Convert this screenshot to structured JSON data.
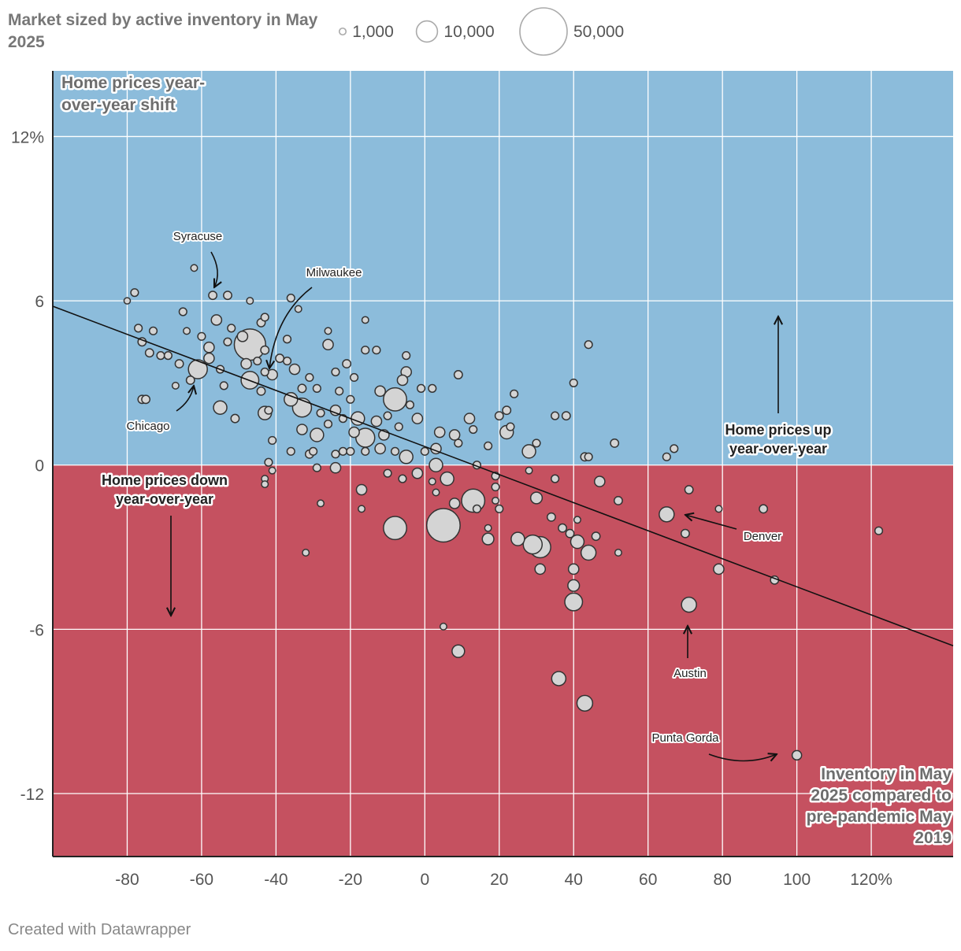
{
  "legend": {
    "title": "Market sized by active inventory in May 2025",
    "sizes": [
      {
        "value": 1000,
        "label": "1,000"
      },
      {
        "value": 10000,
        "label": "10,000"
      },
      {
        "value": 50000,
        "label": "50,000"
      }
    ]
  },
  "credit": "Created with Datawrapper",
  "chart_data": {
    "type": "scatter",
    "xlabel": "Inventory in May 2025 compared to pre-pandemic May 2019",
    "ylabel": "Home prices year-over-year shift",
    "xlim": [
      -100,
      142
    ],
    "ylim": [
      -14.3,
      14.4
    ],
    "x_ticks": [
      -80,
      -60,
      -40,
      -20,
      0,
      20,
      40,
      60,
      80,
      100,
      120
    ],
    "x_tick_labels": [
      "-80",
      "-60",
      "-40",
      "-20",
      "0",
      "20",
      "40",
      "60",
      "80",
      "100",
      "120%"
    ],
    "y_ticks": [
      12,
      6,
      0,
      -6,
      -12
    ],
    "y_tick_labels": [
      "12%",
      "6",
      "0",
      "-6",
      "-12"
    ],
    "grid": true,
    "colors": {
      "above_zero": "#8cbcdb",
      "below_zero": "#c55160",
      "point_fill": "#d4d4d4",
      "point_stroke": "#333333",
      "grid": "#ffffff"
    },
    "trendline": {
      "x": [
        -100,
        142
      ],
      "y": [
        5.8,
        -6.6
      ]
    },
    "zone_labels": {
      "up": "Home prices up year-over-year",
      "down": "Home prices down year-over-year"
    },
    "annotations": [
      {
        "text": "Syracuse",
        "x": -57,
        "y": 6.2
      },
      {
        "text": "Milwaukee",
        "x": -41,
        "y": 3.5
      },
      {
        "text": "Chicago",
        "x": -63,
        "y": 3.4
      },
      {
        "text": "Denver",
        "x": 65,
        "y": -1.8
      },
      {
        "text": "Austin",
        "x": 71,
        "y": -5.1
      },
      {
        "text": "Punta Gorda",
        "x": 100,
        "y": -10.6
      }
    ],
    "points": [
      {
        "x": -80,
        "y": 6.0,
        "size": 900
      },
      {
        "x": -78,
        "y": 6.3,
        "size": 1300
      },
      {
        "x": -62,
        "y": 7.2,
        "size": 1000
      },
      {
        "x": -57,
        "y": 6.2,
        "size": 1500
      },
      {
        "x": -53,
        "y": 6.2,
        "size": 1500
      },
      {
        "x": -47,
        "y": 6.0,
        "size": 1000
      },
      {
        "x": -36,
        "y": 6.1,
        "size": 1300
      },
      {
        "x": -34,
        "y": 5.7,
        "size": 1000
      },
      {
        "x": -65,
        "y": 5.6,
        "size": 1300
      },
      {
        "x": -56,
        "y": 5.3,
        "size": 2400
      },
      {
        "x": -47,
        "y": 4.4,
        "size": 22000
      },
      {
        "x": -44,
        "y": 5.2,
        "size": 1500
      },
      {
        "x": -43,
        "y": 5.4,
        "size": 1300
      },
      {
        "x": -77,
        "y": 5.0,
        "size": 1300
      },
      {
        "x": -73,
        "y": 4.9,
        "size": 1300
      },
      {
        "x": -64,
        "y": 4.9,
        "size": 1000
      },
      {
        "x": -60,
        "y": 4.7,
        "size": 1300
      },
      {
        "x": -52,
        "y": 5.0,
        "size": 1300
      },
      {
        "x": -49,
        "y": 4.7,
        "size": 2400
      },
      {
        "x": -76,
        "y": 4.5,
        "size": 1500
      },
      {
        "x": -74,
        "y": 4.1,
        "size": 1500
      },
      {
        "x": -71,
        "y": 4.0,
        "size": 1300
      },
      {
        "x": -69,
        "y": 4.0,
        "size": 1300
      },
      {
        "x": -58,
        "y": 4.3,
        "size": 2400
      },
      {
        "x": -53,
        "y": 4.5,
        "size": 1300
      },
      {
        "x": -43,
        "y": 4.2,
        "size": 1500
      },
      {
        "x": -37,
        "y": 4.6,
        "size": 1300
      },
      {
        "x": -26,
        "y": 4.9,
        "size": 1000
      },
      {
        "x": -26,
        "y": 4.4,
        "size": 2400
      },
      {
        "x": -16,
        "y": 5.3,
        "size": 1000
      },
      {
        "x": -16,
        "y": 4.2,
        "size": 1300
      },
      {
        "x": -13,
        "y": 4.2,
        "size": 1300
      },
      {
        "x": -5,
        "y": 4.0,
        "size": 1300
      },
      {
        "x": 44,
        "y": 4.4,
        "size": 1300
      },
      {
        "x": -66,
        "y": 3.7,
        "size": 1500
      },
      {
        "x": -61,
        "y": 3.5,
        "size": 8000
      },
      {
        "x": -58,
        "y": 3.9,
        "size": 2400
      },
      {
        "x": -55,
        "y": 3.5,
        "size": 1300
      },
      {
        "x": -48,
        "y": 3.7,
        "size": 2400
      },
      {
        "x": -45,
        "y": 3.8,
        "size": 1300
      },
      {
        "x": -43,
        "y": 3.4,
        "size": 1300
      },
      {
        "x": -41,
        "y": 3.3,
        "size": 2400
      },
      {
        "x": -39,
        "y": 3.9,
        "size": 1500
      },
      {
        "x": -37,
        "y": 3.8,
        "size": 1300
      },
      {
        "x": -35,
        "y": 3.5,
        "size": 2400
      },
      {
        "x": -31,
        "y": 3.2,
        "size": 1300
      },
      {
        "x": -21,
        "y": 3.7,
        "size": 1500
      },
      {
        "x": -24,
        "y": 3.4,
        "size": 1300
      },
      {
        "x": -19,
        "y": 3.2,
        "size": 1300
      },
      {
        "x": -5,
        "y": 3.4,
        "size": 2400
      },
      {
        "x": 9,
        "y": 3.3,
        "size": 1500
      },
      {
        "x": -67,
        "y": 2.9,
        "size": 1000
      },
      {
        "x": -76,
        "y": 2.4,
        "size": 1500
      },
      {
        "x": -75,
        "y": 2.4,
        "size": 1500
      },
      {
        "x": -63,
        "y": 3.1,
        "size": 1500
      },
      {
        "x": -54,
        "y": 2.9,
        "size": 1300
      },
      {
        "x": -47,
        "y": 3.1,
        "size": 7000
      },
      {
        "x": -44,
        "y": 2.7,
        "size": 1500
      },
      {
        "x": -36,
        "y": 2.4,
        "size": 4000
      },
      {
        "x": -33,
        "y": 2.8,
        "size": 1500
      },
      {
        "x": -29,
        "y": 2.8,
        "size": 1300
      },
      {
        "x": -23,
        "y": 2.7,
        "size": 1300
      },
      {
        "x": -20,
        "y": 2.4,
        "size": 1300
      },
      {
        "x": -12,
        "y": 2.7,
        "size": 2400
      },
      {
        "x": -8,
        "y": 2.4,
        "size": 12000
      },
      {
        "x": -6,
        "y": 3.1,
        "size": 2400
      },
      {
        "x": -4,
        "y": 2.2,
        "size": 1300
      },
      {
        "x": -1,
        "y": 2.8,
        "size": 1300
      },
      {
        "x": 2,
        "y": 2.8,
        "size": 1300
      },
      {
        "x": 24,
        "y": 2.6,
        "size": 1300
      },
      {
        "x": 40,
        "y": 3.0,
        "size": 1300
      },
      {
        "x": -55,
        "y": 2.1,
        "size": 4000
      },
      {
        "x": -51,
        "y": 1.7,
        "size": 1500
      },
      {
        "x": -43,
        "y": 1.9,
        "size": 4000
      },
      {
        "x": -42,
        "y": 2.0,
        "size": 1300
      },
      {
        "x": -33,
        "y": 2.1,
        "size": 8000
      },
      {
        "x": -28,
        "y": 1.9,
        "size": 1300
      },
      {
        "x": -24,
        "y": 2.0,
        "size": 2400
      },
      {
        "x": -22,
        "y": 1.7,
        "size": 1300
      },
      {
        "x": -18,
        "y": 1.7,
        "size": 4000
      },
      {
        "x": -13,
        "y": 1.6,
        "size": 2400
      },
      {
        "x": -10,
        "y": 1.8,
        "size": 1300
      },
      {
        "x": -2,
        "y": 1.7,
        "size": 2400
      },
      {
        "x": 12,
        "y": 1.7,
        "size": 2400
      },
      {
        "x": 20,
        "y": 1.8,
        "size": 1500
      },
      {
        "x": 22,
        "y": 2.0,
        "size": 1500
      },
      {
        "x": 35,
        "y": 1.8,
        "size": 1300
      },
      {
        "x": 38,
        "y": 1.8,
        "size": 1500
      },
      {
        "x": -33,
        "y": 1.3,
        "size": 2400
      },
      {
        "x": -29,
        "y": 1.1,
        "size": 4000
      },
      {
        "x": -26,
        "y": 1.5,
        "size": 1300
      },
      {
        "x": -19,
        "y": 1.2,
        "size": 2400
      },
      {
        "x": -16,
        "y": 1.0,
        "size": 8000
      },
      {
        "x": -11,
        "y": 1.1,
        "size": 2400
      },
      {
        "x": -7,
        "y": 1.4,
        "size": 1300
      },
      {
        "x": 4,
        "y": 1.2,
        "size": 2400
      },
      {
        "x": 8,
        "y": 1.1,
        "size": 2400
      },
      {
        "x": 13,
        "y": 1.3,
        "size": 1300
      },
      {
        "x": 22,
        "y": 1.2,
        "size": 4000
      },
      {
        "x": 23,
        "y": 1.4,
        "size": 1300
      },
      {
        "x": -41,
        "y": 0.9,
        "size": 1300
      },
      {
        "x": -36,
        "y": 0.5,
        "size": 1300
      },
      {
        "x": -30,
        "y": 0.5,
        "size": 1300
      },
      {
        "x": -24,
        "y": 0.4,
        "size": 1300
      },
      {
        "x": -22,
        "y": 0.5,
        "size": 1300
      },
      {
        "x": -20,
        "y": 0.5,
        "size": 1300
      },
      {
        "x": -16,
        "y": 0.5,
        "size": 1300
      },
      {
        "x": -12,
        "y": 0.6,
        "size": 2400
      },
      {
        "x": -8,
        "y": 0.5,
        "size": 1300
      },
      {
        "x": -5,
        "y": 0.3,
        "size": 4000
      },
      {
        "x": 0,
        "y": 0.5,
        "size": 1300
      },
      {
        "x": 3,
        "y": 0.6,
        "size": 2400
      },
      {
        "x": 9,
        "y": 0.8,
        "size": 1300
      },
      {
        "x": 17,
        "y": 0.7,
        "size": 1300
      },
      {
        "x": 28,
        "y": 0.5,
        "size": 4000
      },
      {
        "x": 30,
        "y": 0.8,
        "size": 1300
      },
      {
        "x": 43,
        "y": 0.3,
        "size": 1500
      },
      {
        "x": 44,
        "y": 0.3,
        "size": 1300
      },
      {
        "x": 51,
        "y": 0.8,
        "size": 1500
      },
      {
        "x": 65,
        "y": 0.3,
        "size": 1300
      },
      {
        "x": 67,
        "y": 0.6,
        "size": 1300
      },
      {
        "x": -42,
        "y": 0.1,
        "size": 1300
      },
      {
        "x": -41,
        "y": -0.2,
        "size": 1000
      },
      {
        "x": -31,
        "y": 0.4,
        "size": 1500
      },
      {
        "x": -29,
        "y": -0.1,
        "size": 1300
      },
      {
        "x": -24,
        "y": -0.1,
        "size": 2400
      },
      {
        "x": -10,
        "y": -0.3,
        "size": 1300
      },
      {
        "x": -6,
        "y": -0.5,
        "size": 1300
      },
      {
        "x": -2,
        "y": -0.3,
        "size": 2400
      },
      {
        "x": 3,
        "y": 0.0,
        "size": 4000
      },
      {
        "x": 6,
        "y": -0.5,
        "size": 4000
      },
      {
        "x": 14,
        "y": 0.0,
        "size": 1300
      },
      {
        "x": 19,
        "y": -0.4,
        "size": 1300
      },
      {
        "x": 28,
        "y": -0.2,
        "size": 1000
      },
      {
        "x": -43,
        "y": -0.5,
        "size": 1000
      },
      {
        "x": -43,
        "y": -0.7,
        "size": 1000
      },
      {
        "x": -17,
        "y": -0.9,
        "size": 2400
      },
      {
        "x": 2,
        "y": -0.6,
        "size": 1000
      },
      {
        "x": 3,
        "y": -1.0,
        "size": 1000
      },
      {
        "x": 19,
        "y": -0.8,
        "size": 1300
      },
      {
        "x": 35,
        "y": -0.5,
        "size": 1300
      },
      {
        "x": 47,
        "y": -0.6,
        "size": 2400
      },
      {
        "x": 71,
        "y": -0.9,
        "size": 1500
      },
      {
        "x": -28,
        "y": -1.4,
        "size": 1000
      },
      {
        "x": -17,
        "y": -1.6,
        "size": 1000
      },
      {
        "x": 8,
        "y": -1.4,
        "size": 2400
      },
      {
        "x": 13,
        "y": -1.3,
        "size": 12000
      },
      {
        "x": 14,
        "y": -1.6,
        "size": 1300
      },
      {
        "x": 19,
        "y": -1.3,
        "size": 1000
      },
      {
        "x": 20,
        "y": -1.6,
        "size": 1300
      },
      {
        "x": 30,
        "y": -1.2,
        "size": 3000
      },
      {
        "x": 52,
        "y": -1.3,
        "size": 1500
      },
      {
        "x": 65,
        "y": -1.8,
        "size": 5000
      },
      {
        "x": 79,
        "y": -1.6,
        "size": 1000
      },
      {
        "x": 91,
        "y": -1.6,
        "size": 1500
      },
      {
        "x": -8,
        "y": -2.3,
        "size": 12000
      },
      {
        "x": 5,
        "y": -2.2,
        "size": 25000
      },
      {
        "x": 17,
        "y": -2.3,
        "size": 1000
      },
      {
        "x": 17,
        "y": -2.7,
        "size": 3000
      },
      {
        "x": 25,
        "y": -2.7,
        "size": 4000
      },
      {
        "x": 29,
        "y": -2.9,
        "size": 8000
      },
      {
        "x": 31,
        "y": -3.0,
        "size": 10000
      },
      {
        "x": 34,
        "y": -1.9,
        "size": 1500
      },
      {
        "x": 37,
        "y": -2.3,
        "size": 1500
      },
      {
        "x": 39,
        "y": -2.5,
        "size": 1500
      },
      {
        "x": 41,
        "y": -2.0,
        "size": 1000
      },
      {
        "x": 41,
        "y": -2.8,
        "size": 4000
      },
      {
        "x": 44,
        "y": -3.2,
        "size": 5000
      },
      {
        "x": 46,
        "y": -2.6,
        "size": 1500
      },
      {
        "x": 52,
        "y": -3.2,
        "size": 1000
      },
      {
        "x": 70,
        "y": -2.5,
        "size": 1500
      },
      {
        "x": 122,
        "y": -2.4,
        "size": 1300
      },
      {
        "x": -32,
        "y": -3.2,
        "size": 1000
      },
      {
        "x": 31,
        "y": -3.8,
        "size": 2400
      },
      {
        "x": 40,
        "y": -3.8,
        "size": 2400
      },
      {
        "x": 40,
        "y": -4.4,
        "size": 3000
      },
      {
        "x": 79,
        "y": -3.8,
        "size": 2400
      },
      {
        "x": 94,
        "y": -4.2,
        "size": 1500
      },
      {
        "x": 40,
        "y": -5.0,
        "size": 7000
      },
      {
        "x": 71,
        "y": -5.1,
        "size": 5000
      },
      {
        "x": 5,
        "y": -5.9,
        "size": 1000
      },
      {
        "x": 9,
        "y": -6.8,
        "size": 3500
      },
      {
        "x": 36,
        "y": -7.8,
        "size": 4500
      },
      {
        "x": 43,
        "y": -8.7,
        "size": 5500
      },
      {
        "x": 100,
        "y": -10.6,
        "size": 2000
      }
    ]
  }
}
